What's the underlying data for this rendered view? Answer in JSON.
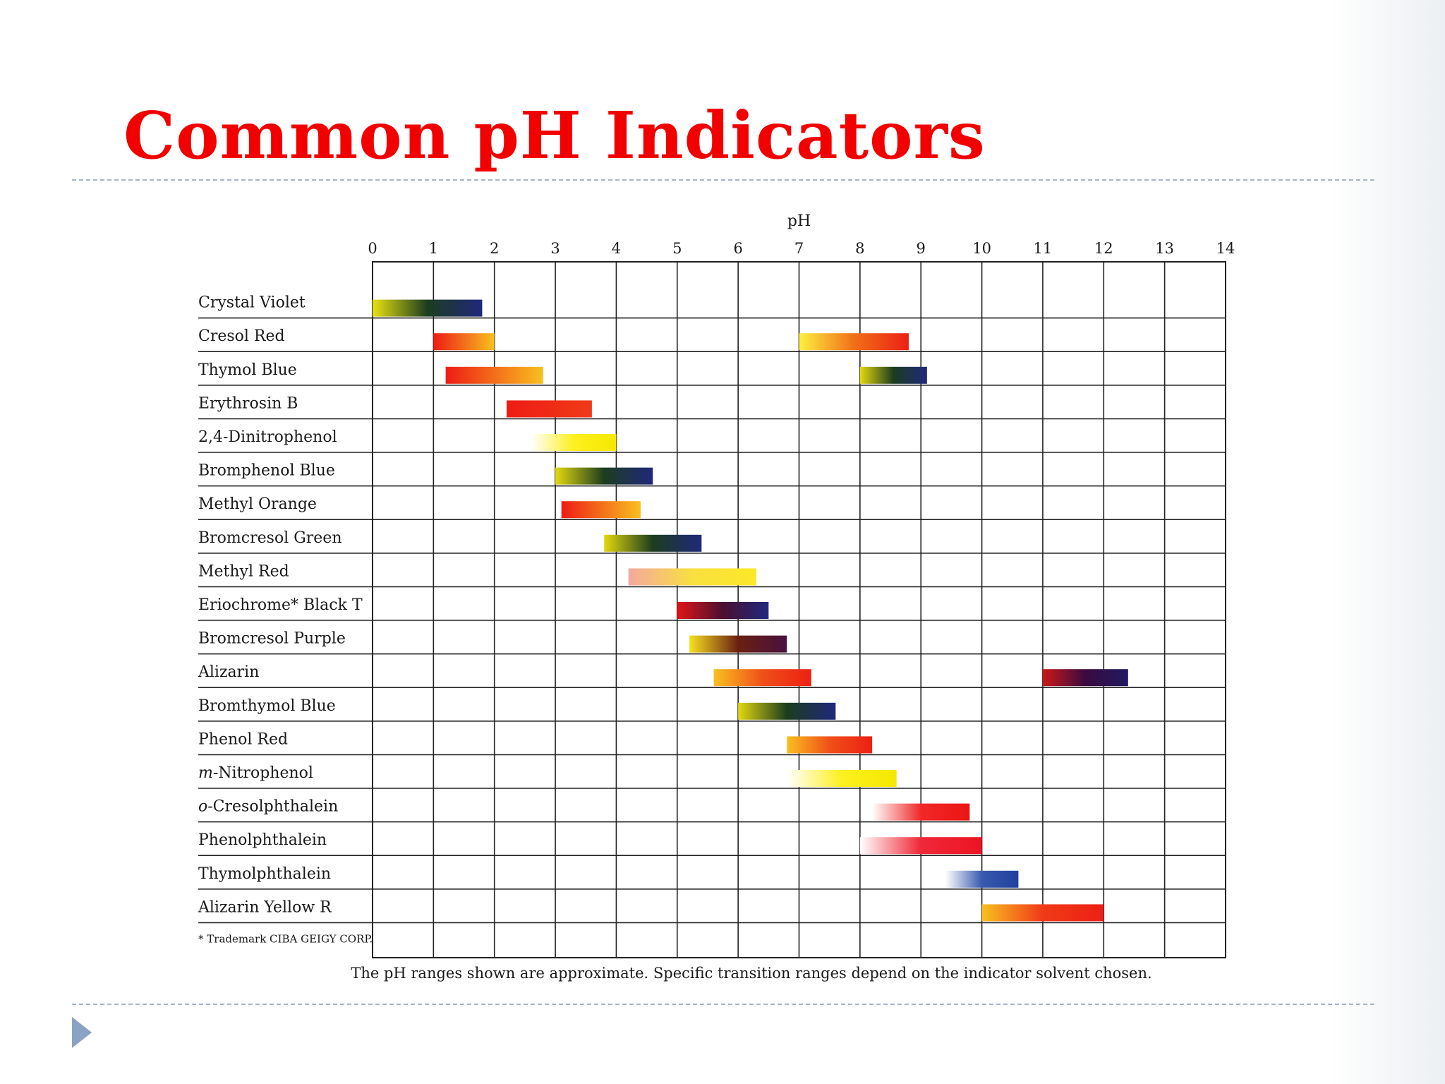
{
  "slide": {
    "title": "Common pH Indicators"
  },
  "icons": {
    "nav": "play-triangle-icon"
  },
  "chart_data": {
    "type": "range-bar",
    "axis_title": "pH",
    "xlim": [
      0,
      14
    ],
    "ticks": [
      "0",
      "1",
      "2",
      "3",
      "4",
      "5",
      "6",
      "7",
      "8",
      "9",
      "10",
      "11",
      "12",
      "13",
      "14"
    ],
    "indicators": [
      {
        "name": "Crystal Violet",
        "ranges": [
          {
            "from": 0.0,
            "to": 1.8,
            "colors": [
              "#e8e210",
              "#1c3d1e",
              "#20287c"
            ]
          }
        ]
      },
      {
        "name": "Cresol Red",
        "ranges": [
          {
            "from": 1.0,
            "to": 2.0,
            "colors": [
              "#ee1c14",
              "#f8c020"
            ]
          },
          {
            "from": 7.0,
            "to": 8.8,
            "colors": [
              "#fdf040",
              "#f07018",
              "#ec2014"
            ]
          }
        ]
      },
      {
        "name": "Thymol Blue",
        "ranges": [
          {
            "from": 1.2,
            "to": 2.8,
            "colors": [
              "#ee1c14",
              "#f8c020"
            ]
          },
          {
            "from": 8.0,
            "to": 9.1,
            "colors": [
              "#e2d810",
              "#1c3d1e",
              "#20287c"
            ]
          }
        ]
      },
      {
        "name": "Erythrosin B",
        "ranges": [
          {
            "from": 2.2,
            "to": 3.6,
            "colors": [
              "#ee1c14",
              "#f03a18"
            ]
          }
        ]
      },
      {
        "name": "2,4-Dinitrophenol",
        "ranges": [
          {
            "from": 2.6,
            "to": 4.0,
            "colors": [
              "#ffffff",
              "#fdf020",
              "#f5e800"
            ]
          }
        ]
      },
      {
        "name": "Bromphenol Blue",
        "ranges": [
          {
            "from": 3.0,
            "to": 4.6,
            "colors": [
              "#e2d810",
              "#1c3d1e",
              "#20287c"
            ]
          }
        ]
      },
      {
        "name": "Methyl Orange",
        "ranges": [
          {
            "from": 3.1,
            "to": 4.4,
            "colors": [
              "#ee1c14",
              "#f8c020"
            ]
          }
        ]
      },
      {
        "name": "Bromcresol Green",
        "ranges": [
          {
            "from": 3.8,
            "to": 5.4,
            "colors": [
              "#e2d810",
              "#1c3d1e",
              "#20287c"
            ]
          }
        ]
      },
      {
        "name": "Methyl Red",
        "ranges": [
          {
            "from": 4.2,
            "to": 6.3,
            "colors": [
              "#f4a8a0",
              "#f8e040",
              "#fde828"
            ]
          }
        ]
      },
      {
        "name": "Eriochrome* Black T",
        "ranges": [
          {
            "from": 5.0,
            "to": 6.5,
            "colors": [
              "#e01418",
              "#4a1030",
              "#20287c"
            ]
          }
        ]
      },
      {
        "name": "Bromcresol Purple",
        "ranges": [
          {
            "from": 5.2,
            "to": 6.8,
            "colors": [
              "#f8e020",
              "#6a2010",
              "#4a1040"
            ]
          }
        ]
      },
      {
        "name": "Alizarin",
        "ranges": [
          {
            "from": 5.6,
            "to": 7.2,
            "colors": [
              "#f8c020",
              "#f05018",
              "#ec2014"
            ]
          },
          {
            "from": 11.0,
            "to": 12.4,
            "colors": [
              "#cc1818",
              "#3a0a40",
              "#201a60"
            ]
          }
        ]
      },
      {
        "name": "Bromthymol Blue",
        "ranges": [
          {
            "from": 6.0,
            "to": 7.6,
            "colors": [
              "#e2d810",
              "#1c3d1e",
              "#20287c"
            ]
          }
        ]
      },
      {
        "name": "Phenol Red",
        "ranges": [
          {
            "from": 6.8,
            "to": 8.2,
            "colors": [
              "#f8c020",
              "#f05018",
              "#ec2014"
            ]
          }
        ]
      },
      {
        "name": "m-Nitrophenol",
        "name_italic": "m",
        "name_rest": "-Nitrophenol",
        "ranges": [
          {
            "from": 6.8,
            "to": 8.6,
            "colors": [
              "#ffffff",
              "#fdf020",
              "#f5e800"
            ]
          }
        ]
      },
      {
        "name": "o-Cresolphthalein",
        "name_italic": "o",
        "name_rest": "-Cresolphthalein",
        "ranges": [
          {
            "from": 8.2,
            "to": 9.8,
            "colors": [
              "#ffffff",
              "#f02828",
              "#ec1414"
            ]
          }
        ]
      },
      {
        "name": "Phenolphthalein",
        "ranges": [
          {
            "from": 8.0,
            "to": 10.0,
            "colors": [
              "#ffffff",
              "#f02838",
              "#ec1424"
            ]
          }
        ]
      },
      {
        "name": "Thymolphthalein",
        "ranges": [
          {
            "from": 9.4,
            "to": 10.6,
            "colors": [
              "#ffffff",
              "#3a5ab0",
              "#20409c"
            ]
          }
        ]
      },
      {
        "name": "Alizarin Yellow R",
        "ranges": [
          {
            "from": 10.0,
            "to": 12.0,
            "colors": [
              "#f8c020",
              "#f03a18",
              "#ec2014"
            ]
          }
        ]
      }
    ],
    "footnote": "* Trademark CIBA GEIGY CORP.",
    "caption": "The pH ranges shown are approximate.  Specific transition ranges depend on the indicator solvent chosen.",
    "grid": true
  }
}
